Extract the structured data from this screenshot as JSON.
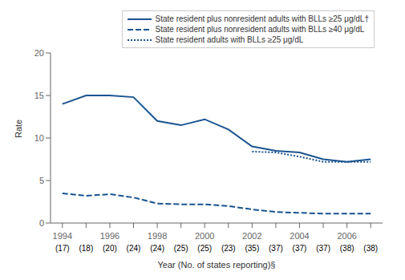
{
  "chart_data": {
    "type": "line",
    "x": [
      1994,
      1995,
      1996,
      1997,
      1998,
      1999,
      2000,
      2001,
      2002,
      2003,
      2004,
      2005,
      2006,
      2007
    ],
    "series": [
      {
        "name": "State resident plus nonresident adults with BLLs ≥25 μg/dL†",
        "values": [
          14.0,
          15.0,
          15.0,
          14.8,
          12.0,
          11.5,
          12.2,
          11.0,
          9.0,
          8.5,
          8.3,
          7.5,
          7.2,
          7.5
        ],
        "line_style": "solid"
      },
      {
        "name": "State resident plus nonresident adults with BLLs ≥40 μg/dL",
        "values": [
          3.5,
          3.2,
          3.4,
          3.0,
          2.3,
          2.2,
          2.2,
          2.0,
          1.6,
          1.3,
          1.2,
          1.1,
          1.1,
          1.1
        ],
        "line_style": "dashed"
      },
      {
        "name": "State resident adults with BLLs ≥25 μg/dL",
        "values": [
          null,
          null,
          null,
          null,
          null,
          null,
          null,
          null,
          8.4,
          8.3,
          7.8,
          7.2,
          7.2,
          7.2
        ],
        "line_style": "dotted"
      }
    ],
    "color": "#1a5490",
    "xlim": [
      1993.5,
      2007.5
    ],
    "ylim": [
      0,
      20
    ],
    "yticks": [
      0,
      5,
      10,
      15,
      20
    ],
    "xticks": [
      1994,
      1996,
      1998,
      2000,
      2002,
      2004,
      2006
    ],
    "xlabel": "Year (No. of states reporting)§",
    "ylabel": "Rate",
    "annotations": [
      {
        "x": 1994,
        "text": "(17)"
      },
      {
        "x": 1995,
        "text": "(18)"
      },
      {
        "x": 1996,
        "text": "(20)"
      },
      {
        "x": 1997,
        "text": "(24)"
      },
      {
        "x": 1998,
        "text": "(24)"
      },
      {
        "x": 1999,
        "text": "(25)"
      },
      {
        "x": 2000,
        "text": "(25)"
      },
      {
        "x": 2001,
        "text": "(23)"
      },
      {
        "x": 2002,
        "text": "(35)"
      },
      {
        "x": 2003,
        "text": "(37)"
      },
      {
        "x": 2004,
        "text": "(37)"
      },
      {
        "x": 2005,
        "text": "(37)"
      },
      {
        "x": 2006,
        "text": "(38)"
      },
      {
        "x": 2007,
        "text": "(38)"
      }
    ],
    "legend": "upper right"
  }
}
